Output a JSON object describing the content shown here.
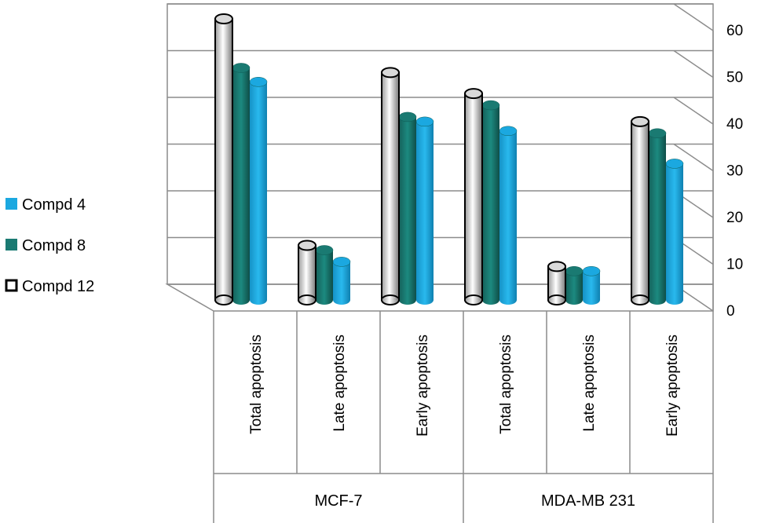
{
  "chart_data": {
    "type": "bar",
    "title": "",
    "xlabel": "",
    "ylabel": "",
    "ylim": [
      0,
      60
    ],
    "yticks": [
      0,
      10,
      20,
      30,
      40,
      50,
      60
    ],
    "groups": [
      "MCF-7",
      "MDA-MB 231"
    ],
    "categories": [
      "Total apoptosis",
      "Late apoptosis",
      "Early apoptosis",
      "Total  apoptosis",
      "Late  apoptosis",
      "Early apoptosis"
    ],
    "series": [
      {
        "name": "Compd 12",
        "color": "#d9d9d9",
        "values": [
          59.5,
          11,
          48,
          43.5,
          6.5,
          37.5
        ]
      },
      {
        "name": "Compd 8",
        "color": "#1a7a72",
        "values": [
          49,
          10,
          38.5,
          41,
          5.5,
          35
        ]
      },
      {
        "name": "Compd 4",
        "color": "#1ba8e0",
        "values": [
          46,
          7.5,
          37.5,
          35.5,
          5.5,
          28.5
        ]
      }
    ],
    "legend": {
      "position": "left",
      "order": [
        "Compd 4",
        "Compd 8",
        "Compd 12"
      ]
    },
    "grid": true
  }
}
